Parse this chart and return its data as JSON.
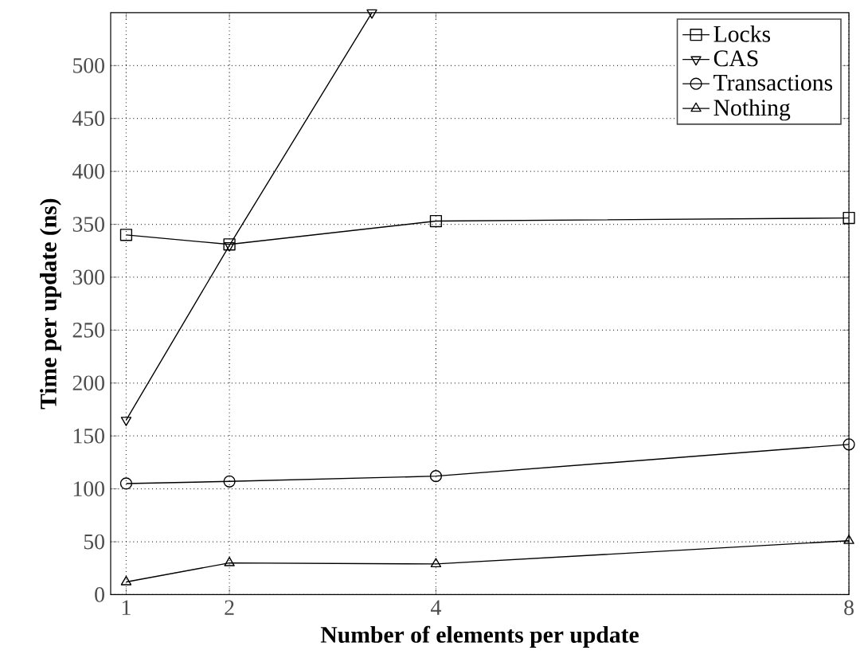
{
  "chart_data": {
    "type": "line",
    "xlabel": "Number of elements per update",
    "ylabel": "Time per update (ns)",
    "x": [
      1,
      2,
      4,
      8
    ],
    "xlim": [
      0.85,
      8
    ],
    "xticks": [
      1,
      2,
      4,
      8
    ],
    "ylim": [
      0,
      550
    ],
    "yticks": [
      0,
      50,
      100,
      150,
      200,
      250,
      300,
      350,
      400,
      450,
      500
    ],
    "grid": true,
    "legend": "top right",
    "line_style": "solid",
    "series": [
      {
        "name": "Locks",
        "color": "#000000",
        "marker": "square",
        "values": [
          340,
          331,
          353,
          356
        ]
      },
      {
        "name": "CAS",
        "color": "#000000",
        "marker": "triangle-down",
        "x": [
          1,
          2,
          3.38
        ],
        "values": [
          165,
          330,
          550
        ]
      },
      {
        "name": "Transactions",
        "color": "#000000",
        "marker": "circle",
        "values": [
          105,
          107,
          112,
          142
        ]
      },
      {
        "name": "Nothing",
        "color": "#000000",
        "marker": "triangle",
        "values": [
          12,
          30,
          29,
          51
        ]
      }
    ]
  }
}
